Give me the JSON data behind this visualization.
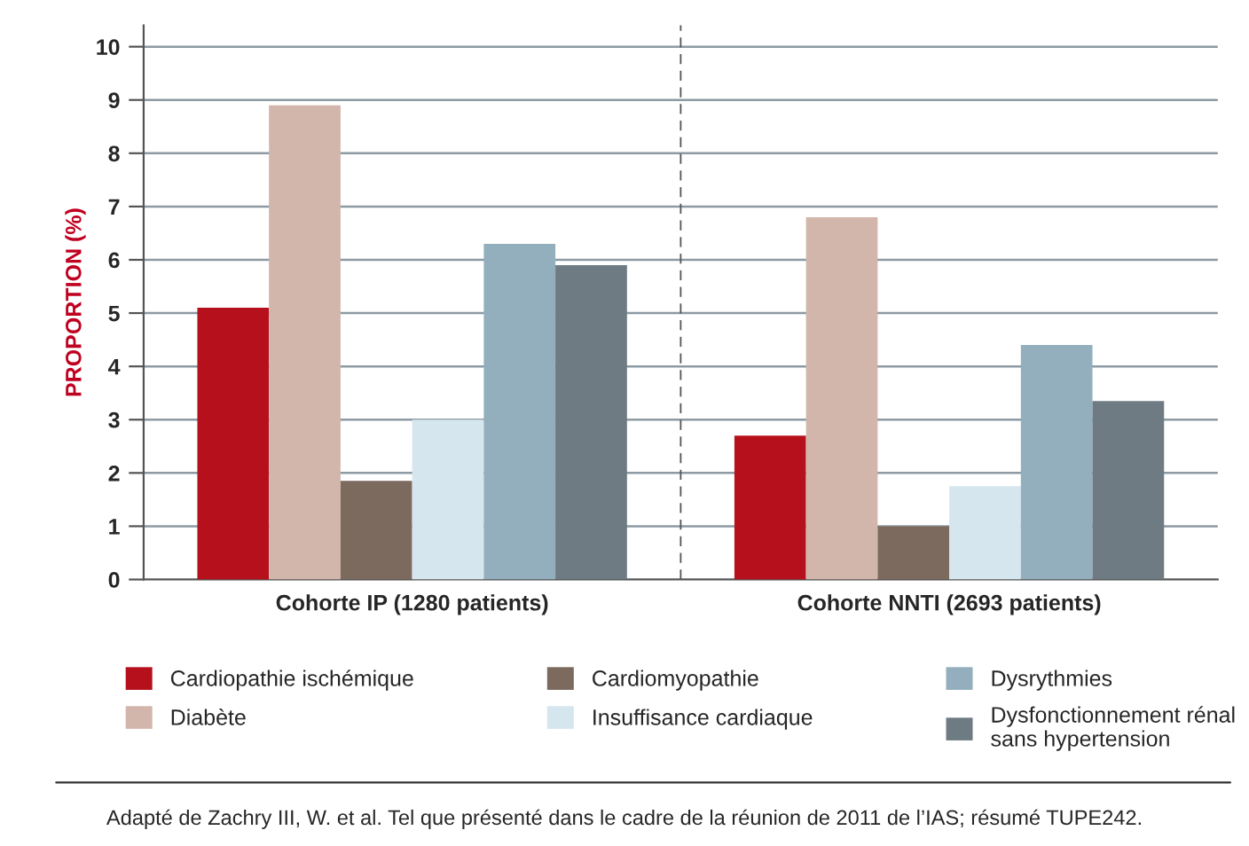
{
  "chart_data": {
    "type": "bar",
    "categories": [
      "Cohorte IP (1280 patients)",
      "Cohorte NNTI (2693 patients)"
    ],
    "series": [
      {
        "name": "Cardiopathie ischémique",
        "color": "#b5101c",
        "values": [
          5.1,
          2.7
        ]
      },
      {
        "name": "Diabète",
        "color": "#d2b6ab",
        "values": [
          8.9,
          6.8
        ]
      },
      {
        "name": "Cardiomyopathie",
        "color": "#7d6a5f",
        "values": [
          1.85,
          1.0
        ]
      },
      {
        "name": "Insuffisance cardiaque",
        "color": "#d6e6ef",
        "values": [
          3.0,
          1.75
        ]
      },
      {
        "name": "Dysrythmies",
        "color": "#93afbd",
        "values": [
          6.3,
          4.4
        ]
      },
      {
        "name": "Dysfonctionnement rénal\nsans hypertension",
        "color": "#6e7b83",
        "values": [
          5.9,
          3.35
        ]
      }
    ],
    "ylabel": "PROPORTION (%)",
    "ylim": [
      0,
      10.4
    ],
    "yticks": [
      0,
      1,
      2,
      3,
      4,
      5,
      6,
      7,
      8,
      9,
      10
    ],
    "grid": "y",
    "legend": "bottom",
    "annotations": [
      "Adapté de Zachry III, W. et al. Tel que présenté dans le cadre de la réunion de 2011 de l’IAS; résumé TUPE242."
    ]
  }
}
